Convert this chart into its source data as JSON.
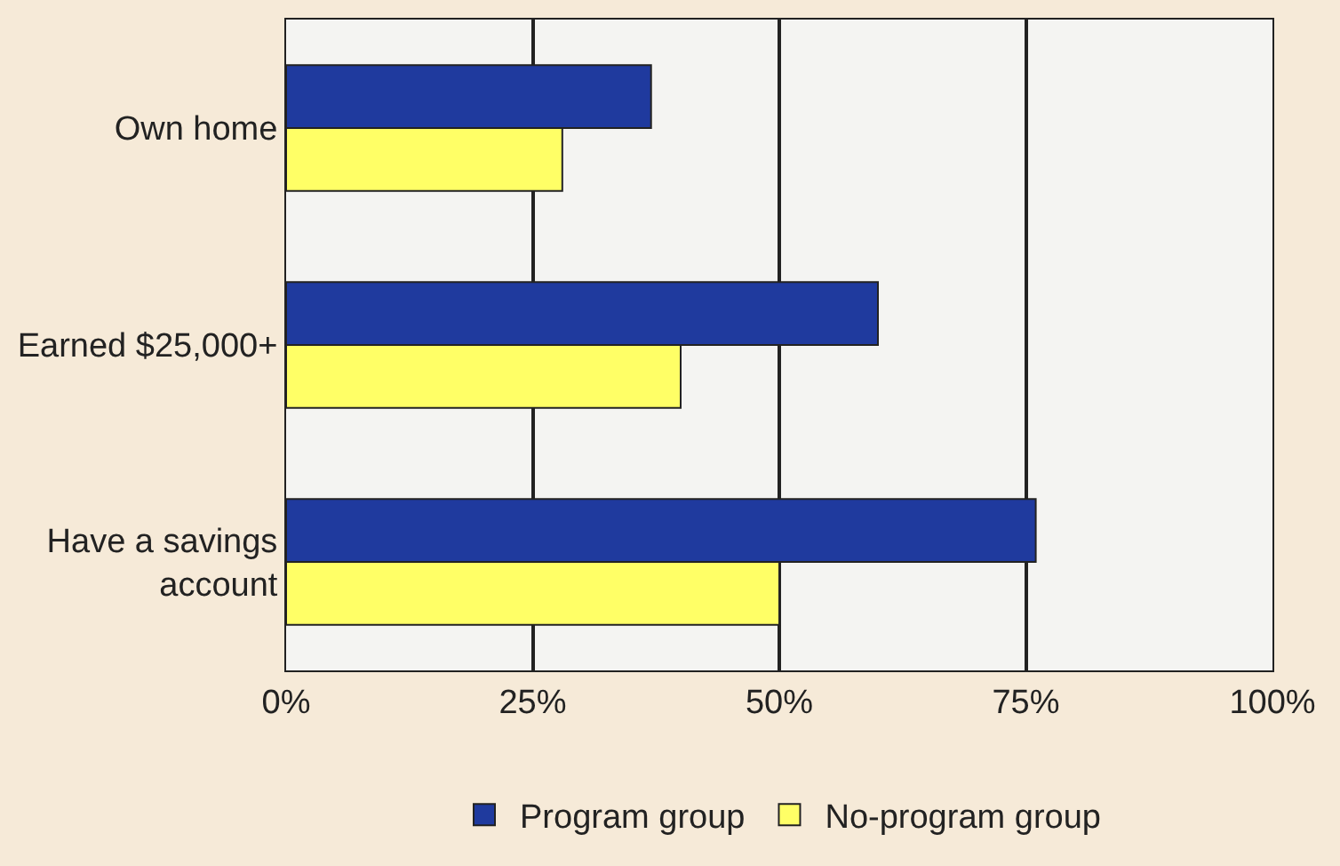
{
  "chart_data": {
    "type": "bar",
    "orientation": "horizontal",
    "categories": [
      "Own home",
      "Earned $25,000+",
      "Have a savings account"
    ],
    "series": [
      {
        "name": "Program group",
        "color": "#1f3a9e",
        "values": [
          37,
          60,
          76
        ]
      },
      {
        "name": "No-program group",
        "color": "#ffff66",
        "values": [
          28,
          40,
          50
        ]
      }
    ],
    "xlim": [
      0,
      100
    ],
    "xticks": [
      {
        "value": 0,
        "label": "0%"
      },
      {
        "value": 25,
        "label": "25%"
      },
      {
        "value": 50,
        "label": "50%"
      },
      {
        "value": 75,
        "label": "75%"
      },
      {
        "value": 100,
        "label": "100%"
      }
    ],
    "grid": "x",
    "legend": "bottom"
  }
}
